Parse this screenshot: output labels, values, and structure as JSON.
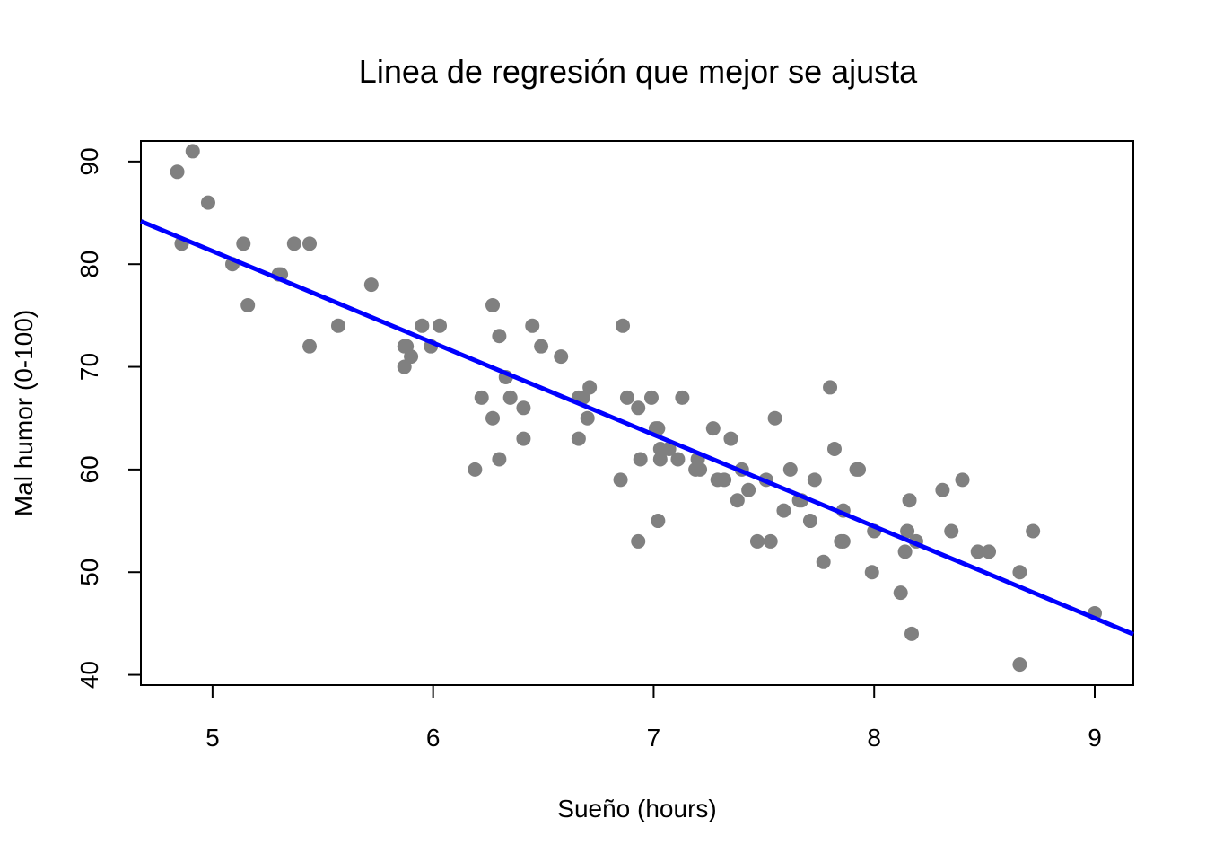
{
  "chart_data": {
    "type": "scatter",
    "title": "Linea de regresión que mejor se ajusta",
    "xlabel": "Sueño (hours)",
    "ylabel": "Mal humor (0-100)",
    "xlim": [
      4.675,
      9.175
    ],
    "ylim": [
      39,
      92
    ],
    "x_ticks": [
      5,
      6,
      7,
      8,
      9
    ],
    "y_ticks": [
      40,
      50,
      60,
      70,
      80,
      90
    ],
    "grid": false,
    "point_color": "#808080",
    "line_color": "#0000ff",
    "regression_line": {
      "intercept": 125.956,
      "slope": -8.937
    },
    "points": [
      {
        "x": 4.84,
        "y": 89
      },
      {
        "x": 4.91,
        "y": 91
      },
      {
        "x": 4.86,
        "y": 82
      },
      {
        "x": 4.98,
        "y": 86
      },
      {
        "x": 5.09,
        "y": 80
      },
      {
        "x": 5.14,
        "y": 82
      },
      {
        "x": 5.16,
        "y": 76
      },
      {
        "x": 5.3,
        "y": 79
      },
      {
        "x": 5.31,
        "y": 79
      },
      {
        "x": 5.37,
        "y": 82
      },
      {
        "x": 5.44,
        "y": 82
      },
      {
        "x": 5.44,
        "y": 72
      },
      {
        "x": 5.57,
        "y": 74
      },
      {
        "x": 5.72,
        "y": 78
      },
      {
        "x": 5.87,
        "y": 72
      },
      {
        "x": 5.88,
        "y": 72
      },
      {
        "x": 5.87,
        "y": 70
      },
      {
        "x": 5.9,
        "y": 71
      },
      {
        "x": 5.95,
        "y": 74
      },
      {
        "x": 5.99,
        "y": 72
      },
      {
        "x": 6.03,
        "y": 74
      },
      {
        "x": 6.19,
        "y": 60
      },
      {
        "x": 6.22,
        "y": 67
      },
      {
        "x": 6.27,
        "y": 76
      },
      {
        "x": 6.27,
        "y": 65
      },
      {
        "x": 6.3,
        "y": 73
      },
      {
        "x": 6.3,
        "y": 61
      },
      {
        "x": 6.33,
        "y": 69
      },
      {
        "x": 6.35,
        "y": 67
      },
      {
        "x": 6.41,
        "y": 66
      },
      {
        "x": 6.41,
        "y": 63
      },
      {
        "x": 6.45,
        "y": 74
      },
      {
        "x": 6.49,
        "y": 72
      },
      {
        "x": 6.58,
        "y": 71
      },
      {
        "x": 6.66,
        "y": 67
      },
      {
        "x": 6.68,
        "y": 67
      },
      {
        "x": 6.66,
        "y": 63
      },
      {
        "x": 6.7,
        "y": 65
      },
      {
        "x": 6.71,
        "y": 68
      },
      {
        "x": 6.85,
        "y": 59
      },
      {
        "x": 6.86,
        "y": 74
      },
      {
        "x": 6.88,
        "y": 67
      },
      {
        "x": 6.93,
        "y": 66
      },
      {
        "x": 6.93,
        "y": 53
      },
      {
        "x": 6.94,
        "y": 61
      },
      {
        "x": 6.99,
        "y": 67
      },
      {
        "x": 7.01,
        "y": 64
      },
      {
        "x": 7.02,
        "y": 64
      },
      {
        "x": 7.02,
        "y": 55
      },
      {
        "x": 7.03,
        "y": 62
      },
      {
        "x": 7.03,
        "y": 61
      },
      {
        "x": 7.07,
        "y": 62
      },
      {
        "x": 7.11,
        "y": 61
      },
      {
        "x": 7.13,
        "y": 67
      },
      {
        "x": 7.19,
        "y": 60
      },
      {
        "x": 7.2,
        "y": 61
      },
      {
        "x": 7.21,
        "y": 60
      },
      {
        "x": 7.27,
        "y": 64
      },
      {
        "x": 7.29,
        "y": 59
      },
      {
        "x": 7.32,
        "y": 59
      },
      {
        "x": 7.35,
        "y": 63
      },
      {
        "x": 7.38,
        "y": 57
      },
      {
        "x": 7.4,
        "y": 60
      },
      {
        "x": 7.43,
        "y": 58
      },
      {
        "x": 7.47,
        "y": 53
      },
      {
        "x": 7.51,
        "y": 59
      },
      {
        "x": 7.53,
        "y": 53
      },
      {
        "x": 7.55,
        "y": 65
      },
      {
        "x": 7.59,
        "y": 56
      },
      {
        "x": 7.62,
        "y": 60
      },
      {
        "x": 7.66,
        "y": 57
      },
      {
        "x": 7.67,
        "y": 57
      },
      {
        "x": 7.71,
        "y": 55
      },
      {
        "x": 7.73,
        "y": 59
      },
      {
        "x": 7.77,
        "y": 51
      },
      {
        "x": 7.8,
        "y": 68
      },
      {
        "x": 7.82,
        "y": 62
      },
      {
        "x": 7.85,
        "y": 53
      },
      {
        "x": 7.86,
        "y": 53
      },
      {
        "x": 7.86,
        "y": 56
      },
      {
        "x": 7.92,
        "y": 60
      },
      {
        "x": 7.93,
        "y": 60
      },
      {
        "x": 7.99,
        "y": 50
      },
      {
        "x": 8.0,
        "y": 54
      },
      {
        "x": 8.12,
        "y": 48
      },
      {
        "x": 8.14,
        "y": 52
      },
      {
        "x": 8.15,
        "y": 54
      },
      {
        "x": 8.16,
        "y": 57
      },
      {
        "x": 8.17,
        "y": 44
      },
      {
        "x": 8.19,
        "y": 53
      },
      {
        "x": 8.31,
        "y": 58
      },
      {
        "x": 8.35,
        "y": 54
      },
      {
        "x": 8.4,
        "y": 59
      },
      {
        "x": 8.47,
        "y": 52
      },
      {
        "x": 8.52,
        "y": 52
      },
      {
        "x": 8.66,
        "y": 50
      },
      {
        "x": 8.66,
        "y": 41
      },
      {
        "x": 8.72,
        "y": 54
      },
      {
        "x": 9.0,
        "y": 46
      }
    ]
  }
}
